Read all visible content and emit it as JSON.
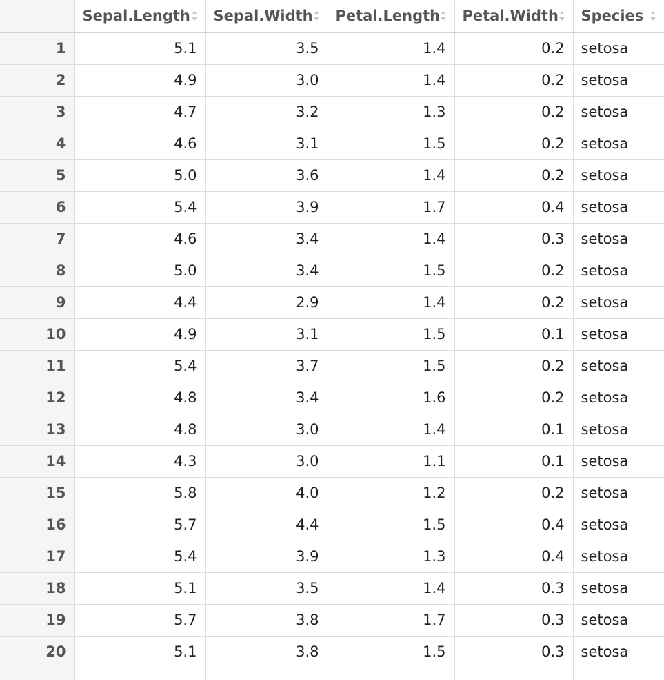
{
  "columns": [
    "",
    "Sepal.Length",
    "Sepal.Width",
    "Petal.Length",
    "Petal.Width",
    "Species"
  ],
  "rows": [
    [
      "1",
      "5.1",
      "3.5",
      "1.4",
      "0.2",
      "setosa"
    ],
    [
      "2",
      "4.9",
      "3.0",
      "1.4",
      "0.2",
      "setosa"
    ],
    [
      "3",
      "4.7",
      "3.2",
      "1.3",
      "0.2",
      "setosa"
    ],
    [
      "4",
      "4.6",
      "3.1",
      "1.5",
      "0.2",
      "setosa"
    ],
    [
      "5",
      "5.0",
      "3.6",
      "1.4",
      "0.2",
      "setosa"
    ],
    [
      "6",
      "5.4",
      "3.9",
      "1.7",
      "0.4",
      "setosa"
    ],
    [
      "7",
      "4.6",
      "3.4",
      "1.4",
      "0.3",
      "setosa"
    ],
    [
      "8",
      "5.0",
      "3.4",
      "1.5",
      "0.2",
      "setosa"
    ],
    [
      "9",
      "4.4",
      "2.9",
      "1.4",
      "0.2",
      "setosa"
    ],
    [
      "10",
      "4.9",
      "3.1",
      "1.5",
      "0.1",
      "setosa"
    ],
    [
      "11",
      "5.4",
      "3.7",
      "1.5",
      "0.2",
      "setosa"
    ],
    [
      "12",
      "4.8",
      "3.4",
      "1.6",
      "0.2",
      "setosa"
    ],
    [
      "13",
      "4.8",
      "3.0",
      "1.4",
      "0.1",
      "setosa"
    ],
    [
      "14",
      "4.3",
      "3.0",
      "1.1",
      "0.1",
      "setosa"
    ],
    [
      "15",
      "5.8",
      "4.0",
      "1.2",
      "0.2",
      "setosa"
    ],
    [
      "16",
      "5.7",
      "4.4",
      "1.5",
      "0.4",
      "setosa"
    ],
    [
      "17",
      "5.4",
      "3.9",
      "1.3",
      "0.4",
      "setosa"
    ],
    [
      "18",
      "5.1",
      "3.5",
      "1.4",
      "0.3",
      "setosa"
    ],
    [
      "19",
      "5.7",
      "3.8",
      "1.7",
      "0.3",
      "setosa"
    ],
    [
      "20",
      "5.1",
      "3.8",
      "1.5",
      "0.3",
      "setosa"
    ]
  ],
  "colors": {
    "index_bg": "#f5f5f5",
    "header_text": "#555555",
    "cell_text": "#222222",
    "grid_line": "#dcdcdc",
    "sort_icon": "#c8c8c8"
  }
}
